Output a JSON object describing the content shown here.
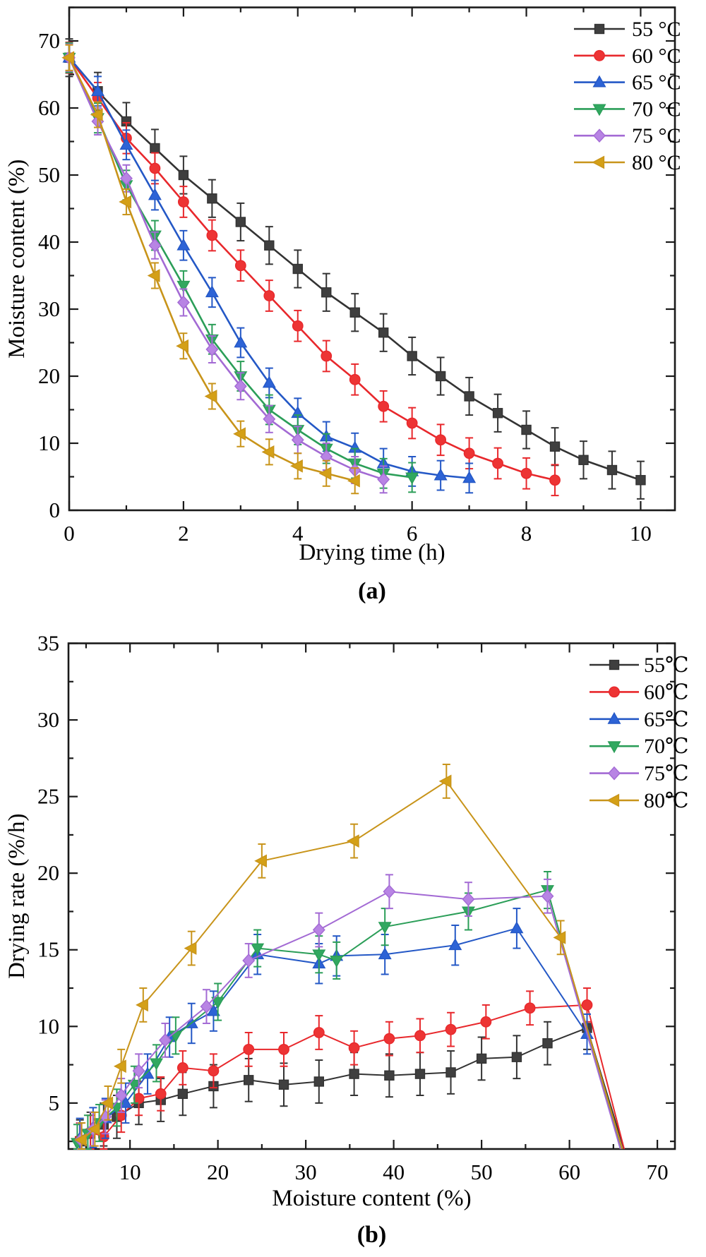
{
  "page": {
    "background": "#ffffff"
  },
  "chart_data": [
    {
      "id": "a",
      "type": "line",
      "caption": "(a)",
      "xlabel": "Drying time (h)",
      "ylabel": "Moisture content (%)",
      "xlim": [
        0,
        10.6
      ],
      "ylim": [
        0,
        75
      ],
      "x_major_ticks": [
        0,
        2,
        4,
        6,
        8,
        10
      ],
      "x_minor_step": 1,
      "y_major_ticks": [
        0,
        10,
        20,
        30,
        40,
        50,
        60,
        70
      ],
      "y_minor_step": 5,
      "grid": false,
      "legend_position": "top-right-inside",
      "series": [
        {
          "name": "55 °C",
          "marker": "square",
          "color": "#333333",
          "fill": "#3f3f3f",
          "err": 2.8,
          "x": [
            0,
            0.5,
            1,
            1.5,
            2,
            2.5,
            3,
            3.5,
            4,
            4.5,
            5,
            5.5,
            6,
            6.5,
            7,
            7.5,
            8,
            8.5,
            9,
            9.5,
            10
          ],
          "y": [
            67.5,
            62.5,
            58,
            54,
            50,
            46.5,
            43,
            39.5,
            36,
            32.5,
            29.5,
            26.5,
            23,
            20,
            17,
            14.5,
            12,
            9.5,
            7.5,
            6,
            4.5
          ]
        },
        {
          "name": "60 °C",
          "marker": "circle",
          "color": "#e8282c",
          "fill": "#ed3434",
          "err": 2.3,
          "x": [
            0,
            0.5,
            1,
            1.5,
            2,
            2.5,
            3,
            3.5,
            4,
            4.5,
            5,
            5.5,
            6,
            6.5,
            7,
            7.5,
            8,
            8.5
          ],
          "y": [
            67.5,
            61.5,
            55.5,
            51,
            46,
            41,
            36.5,
            32,
            27.5,
            23,
            19.5,
            15.5,
            13,
            10.5,
            8.5,
            7,
            5.5,
            4.5
          ]
        },
        {
          "name": "65 °C",
          "marker": "triangle-up",
          "color": "#2458c6",
          "fill": "#2d63d6",
          "err": 2.2,
          "x": [
            0,
            0.5,
            1,
            1.5,
            2,
            2.5,
            3,
            3.5,
            4,
            4.5,
            5,
            5.5,
            6,
            6.5,
            7
          ],
          "y": [
            67.5,
            62.5,
            54.5,
            47,
            39.5,
            32.5,
            25,
            19,
            14.5,
            11,
            9.3,
            7,
            5.8,
            5.2,
            4.8
          ]
        },
        {
          "name": "70 °C",
          "marker": "triangle-down",
          "color": "#2b9e58",
          "fill": "#31a860",
          "err": 2.2,
          "x": [
            0,
            0.5,
            1,
            1.5,
            2,
            2.5,
            3,
            3.5,
            4,
            4.5,
            5,
            5.5,
            6
          ],
          "y": [
            67.5,
            58.5,
            48.5,
            41,
            33.5,
            25.5,
            20,
            15,
            12,
            9.2,
            7,
            5.5,
            4.9
          ]
        },
        {
          "name": "75 °C",
          "marker": "diamond",
          "color": "#a36ad4",
          "fill": "#b884e4",
          "err": 2.0,
          "x": [
            0,
            0.5,
            1,
            1.5,
            2,
            2.5,
            3,
            3.5,
            4,
            4.5,
            5,
            5.5
          ],
          "y": [
            67.5,
            58,
            49.5,
            39.5,
            31,
            24,
            18.5,
            13.6,
            10.5,
            8,
            6,
            4.6
          ]
        },
        {
          "name": "80 °C",
          "marker": "triangle-left",
          "color": "#c8941a",
          "fill": "#d4a017",
          "err": 1.9,
          "x": [
            0,
            0.5,
            1,
            1.5,
            2,
            2.5,
            3,
            3.5,
            4,
            4.5,
            5
          ],
          "y": [
            67.5,
            59,
            46,
            35,
            24.5,
            17,
            11.4,
            8.7,
            6.6,
            5.5,
            4.4
          ]
        }
      ]
    },
    {
      "id": "b",
      "type": "line",
      "caption": "(b)",
      "xlabel": "Moisture content (%)",
      "ylabel": "Drying rate (%/h)",
      "xlim": [
        3,
        72
      ],
      "ylim": [
        2,
        35
      ],
      "x_major_ticks": [
        10,
        20,
        30,
        40,
        50,
        60,
        70
      ],
      "x_minor_step": 5,
      "y_major_ticks": [
        5,
        10,
        15,
        20,
        25,
        30,
        35
      ],
      "y_minor_step": 2.5,
      "grid": false,
      "legend_position": "top-right-inside",
      "series": [
        {
          "name": "55℃",
          "marker": "square",
          "color": "#333333",
          "fill": "#3f3f3f",
          "err": 1.4,
          "x": [
            4.3,
            5.5,
            7,
            8.5,
            11,
            13.5,
            16,
            19.5,
            23.5,
            27.5,
            31.5,
            35.5,
            39.5,
            43,
            46.5,
            50,
            54,
            57.5,
            62,
            66.4
          ],
          "y": [
            2.5,
            3.0,
            3.6,
            4.1,
            5.0,
            5.2,
            5.6,
            6.1,
            6.5,
            6.2,
            6.4,
            6.9,
            6.8,
            6.9,
            7.0,
            7.9,
            8.0,
            8.9,
            9.9,
            1.6
          ]
        },
        {
          "name": "60℃",
          "marker": "circle",
          "color": "#e8282c",
          "fill": "#ed3434",
          "err": 1.1,
          "x": [
            4.3,
            5.5,
            7,
            9,
            11,
            13.5,
            16,
            19.5,
            23.5,
            27.5,
            31.5,
            35.5,
            39.5,
            43,
            46.5,
            50.5,
            55.5,
            62,
            66.4
          ],
          "y": [
            2.6,
            3.1,
            2.8,
            4.2,
            5.3,
            5.6,
            7.3,
            7.1,
            8.5,
            8.5,
            9.6,
            8.6,
            9.2,
            9.4,
            9.8,
            10.3,
            11.2,
            11.4,
            1.6
          ]
        },
        {
          "name": "65℃",
          "marker": "triangle-up",
          "color": "#2458c6",
          "fill": "#2d63d6",
          "err": 1.3,
          "x": [
            4.3,
            5.8,
            7.2,
            9.5,
            12,
            14.5,
            17,
            19.5,
            24.5,
            31.5,
            33.5,
            39,
            47,
            54,
            62,
            66.2
          ],
          "y": [
            2.7,
            3.4,
            4.0,
            5.0,
            6.9,
            9.3,
            10.2,
            11.0,
            14.7,
            14.1,
            14.6,
            14.7,
            15.3,
            16.4,
            9.5,
            1.6
          ]
        },
        {
          "name": "70℃",
          "marker": "triangle-down",
          "color": "#2b9e58",
          "fill": "#31a860",
          "err": 1.2,
          "x": [
            4,
            5.2,
            6.5,
            8.5,
            10.5,
            13,
            15.2,
            20,
            24.5,
            31.5,
            33.5,
            39,
            48.5,
            57.5,
            66
          ],
          "y": [
            2.4,
            3.0,
            3.7,
            4.7,
            6.2,
            7.6,
            9.4,
            11.6,
            15.1,
            14.7,
            14.3,
            16.5,
            17.5,
            18.9,
            1.6
          ]
        },
        {
          "name": "75℃",
          "marker": "diamond",
          "color": "#a36ad4",
          "fill": "#b884e4",
          "err": 1.1,
          "x": [
            4.4,
            5.8,
            7.2,
            9,
            11,
            14,
            18.7,
            23.5,
            31.5,
            39.5,
            48.5,
            57.5,
            66
          ],
          "y": [
            2.6,
            3.3,
            4.1,
            5.5,
            7.1,
            9.1,
            11.3,
            14.3,
            16.3,
            18.8,
            18.3,
            18.5,
            1.6
          ]
        },
        {
          "name": "80℃",
          "marker": "triangle-left",
          "color": "#c8941a",
          "fill": "#d4a017",
          "err": 1.1,
          "x": [
            4.5,
            6,
            7.5,
            9,
            11.5,
            17,
            25,
            35.5,
            46,
            59,
            66.2
          ],
          "y": [
            2.6,
            3.3,
            5.0,
            7.4,
            11.4,
            15.1,
            20.8,
            22.1,
            26.0,
            15.8,
            1.6
          ]
        }
      ]
    }
  ]
}
